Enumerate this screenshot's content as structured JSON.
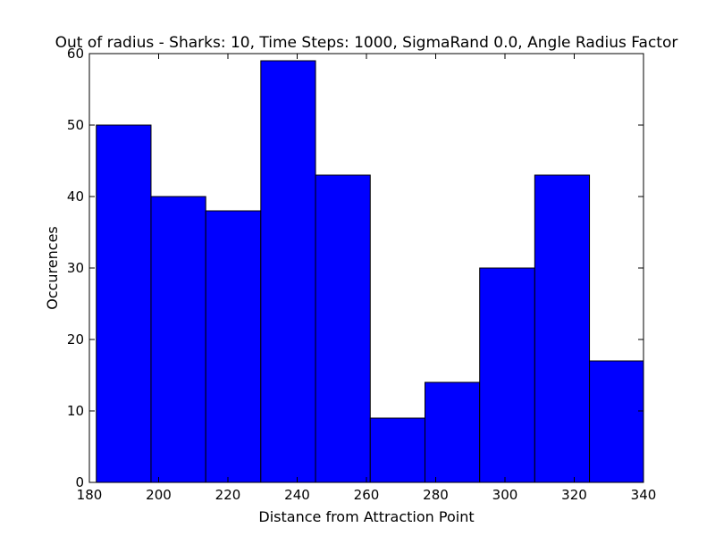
{
  "chart_data": {
    "type": "bar",
    "title": "Out of radius - Sharks: 10, Time Steps: 1000, SigmaRand 0.0, Angle Radius Factor",
    "xlabel": "Distance from Attraction Point",
    "ylabel": "Occurences",
    "xlim": [
      180,
      340
    ],
    "ylim": [
      0,
      60
    ],
    "xticks": [
      "180",
      "200",
      "220",
      "240",
      "260",
      "280",
      "300",
      "320",
      "340"
    ],
    "yticks": [
      "0",
      "10",
      "20",
      "30",
      "40",
      "50",
      "60"
    ],
    "bins": [
      {
        "start": 182.0,
        "end": 197.8,
        "value": 50
      },
      {
        "start": 197.8,
        "end": 213.6,
        "value": 40
      },
      {
        "start": 213.6,
        "end": 229.5,
        "value": 38
      },
      {
        "start": 229.5,
        "end": 245.3,
        "value": 59
      },
      {
        "start": 245.3,
        "end": 261.1,
        "value": 43
      },
      {
        "start": 261.1,
        "end": 276.9,
        "value": 9
      },
      {
        "start": 276.9,
        "end": 292.7,
        "value": 14
      },
      {
        "start": 292.7,
        "end": 308.6,
        "value": 30
      },
      {
        "start": 308.6,
        "end": 324.4,
        "value": 43
      },
      {
        "start": 324.4,
        "end": 340.0,
        "value": 17
      }
    ],
    "bar_color": "#0000ff",
    "edge_color": "#000000",
    "grid": false,
    "legend": "none"
  }
}
